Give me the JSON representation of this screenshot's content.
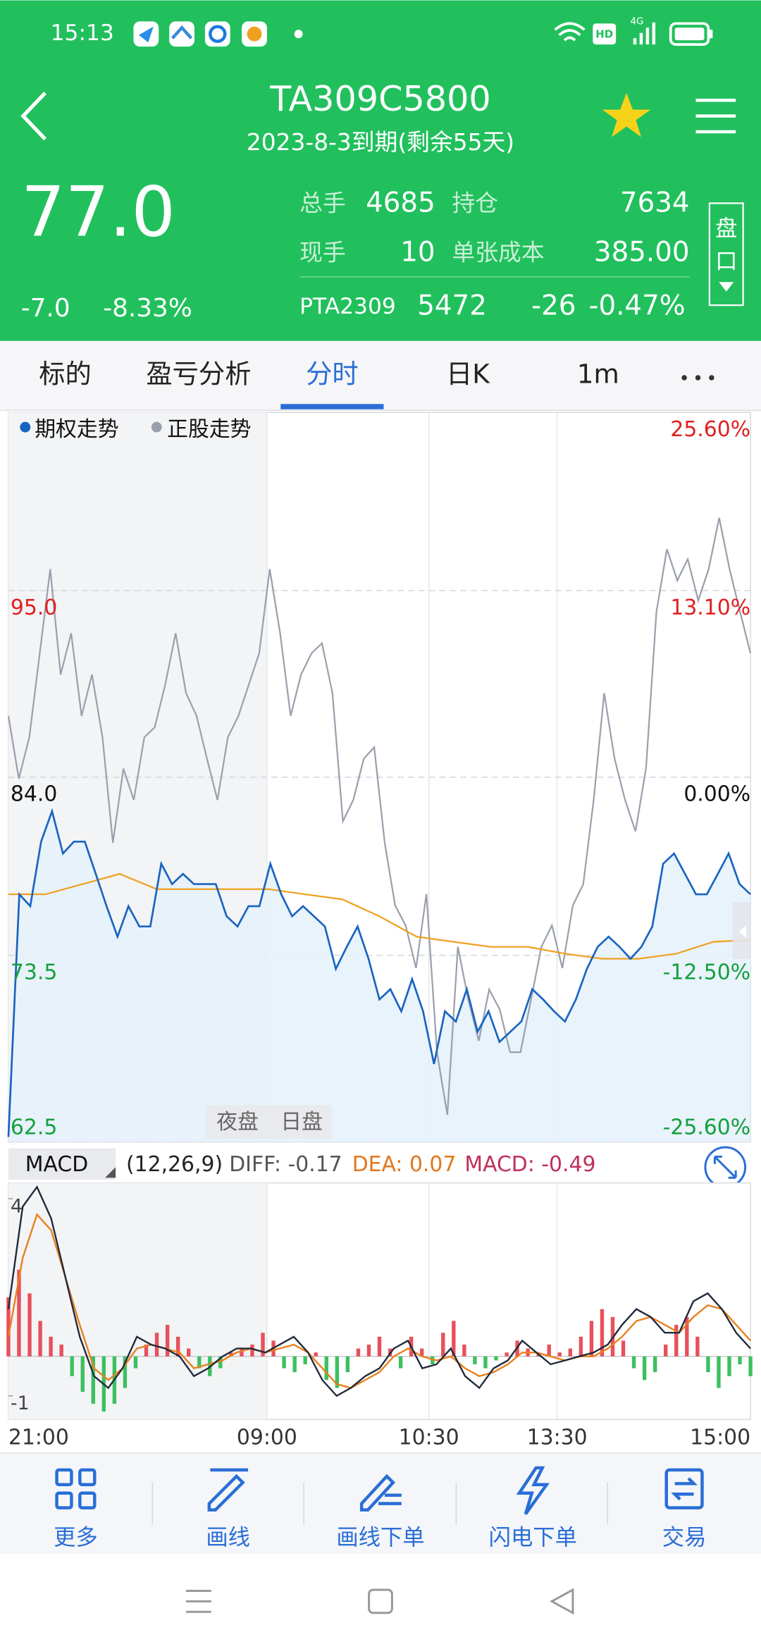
{
  "status": {
    "time": "15:13",
    "indicators": [
      "HD",
      "4G"
    ]
  },
  "header": {
    "title": "TA309C5800",
    "subtitle": "2023-8-3到期(剩余55天)"
  },
  "quote": {
    "price": "77.0",
    "change": "-7.0",
    "change_pct": "-8.33%",
    "stats": [
      {
        "label": "总手",
        "value": "4685"
      },
      {
        "label": "持仓",
        "value": "7634"
      },
      {
        "label": "现手",
        "value": "10"
      },
      {
        "label": "单张成本",
        "value": "385.00"
      }
    ],
    "underlying": {
      "name": "PTA2309",
      "price": "5472",
      "change": "-26",
      "change_pct": "-0.47%"
    },
    "side_button": [
      "盘",
      "口"
    ]
  },
  "tabs": {
    "items": [
      "标的",
      "盈亏分析",
      "分时",
      "日K",
      "1m"
    ],
    "active": 2
  },
  "chart": {
    "type": "line",
    "legend": [
      "期权走势",
      "正股走势"
    ],
    "sessions": [
      "夜盘",
      "日盘"
    ],
    "price_ylim": [
      62.5,
      105.5
    ],
    "price_ticks": [
      {
        "value": 95,
        "label": "95.0"
      },
      {
        "value": 84,
        "label": "84.0"
      },
      {
        "value": 73.5,
        "label": "73.5"
      },
      {
        "value": 62.5,
        "label": "62.5"
      }
    ],
    "pct_ylim": [
      -25.6,
      25.6
    ],
    "pct_ticks": [
      {
        "value": 25.6,
        "label": "25.60%"
      },
      {
        "value": 13.1,
        "label": "13.10%"
      },
      {
        "value": 0,
        "label": "0.00%"
      },
      {
        "value": -12.5,
        "label": "-12.50%"
      },
      {
        "value": -25.6,
        "label": "-25.60%"
      }
    ],
    "up_color": "#e02020",
    "down_color": "#15a03c",
    "flat_color": "#111111",
    "option": {
      "color": "#1a64c0",
      "fill": "#e4f1fb",
      "values": [
        62.8,
        77.1,
        76.4,
        80.2,
        82.0,
        79.5,
        80.2,
        80.2,
        78.3,
        76.4,
        74.6,
        76.4,
        75.2,
        75.2,
        78.9,
        77.7,
        78.3,
        77.7,
        77.7,
        77.7,
        75.8,
        75.2,
        76.4,
        76.4,
        78.9,
        77.1,
        75.8,
        76.4,
        75.8,
        75.2,
        72.7,
        74.0,
        75.2,
        73.3,
        70.9,
        71.5,
        70.2,
        72.1,
        70.2,
        67.1,
        70.2,
        69.6,
        71.5,
        69.0,
        70.2,
        68.4,
        69.0,
        69.6,
        71.5,
        70.9,
        70.2,
        69.6,
        70.9,
        72.7,
        74.0,
        74.6,
        74.0,
        73.3,
        74.0,
        75.2,
        78.9,
        79.5,
        78.3,
        77.1,
        77.1,
        78.3,
        79.5,
        77.7,
        77.1
      ]
    },
    "underlying": {
      "color": "#9aa0ad",
      "values": [
        4.3,
        -0.1,
        2.8,
        8.7,
        14.6,
        7.2,
        10.1,
        4.3,
        7.2,
        2.8,
        -4.6,
        0.6,
        -1.6,
        2.8,
        3.5,
        6.5,
        10.1,
        5.9,
        4.3,
        1.3,
        -1.6,
        2.8,
        4.3,
        6.5,
        8.7,
        14.6,
        10.1,
        4.3,
        7.2,
        8.7,
        9.4,
        5.9,
        -3.1,
        -1.6,
        1.3,
        2.1,
        -4.6,
        -9.0,
        -10.4,
        -13.4,
        -8.2,
        -19.3,
        -23.7,
        -11.9,
        -15.6,
        -18.5,
        -14.9,
        -16.3,
        -19.3,
        -19.3,
        -15.6,
        -11.9,
        -10.4,
        -13.4,
        -9.0,
        -7.5,
        -1.6,
        5.9,
        1.3,
        -1.6,
        -3.8,
        0.6,
        11.6,
        16.0,
        13.8,
        15.3,
        12.4,
        14.6,
        18.2,
        14.6,
        11.6,
        8.7
      ]
    },
    "average": {
      "color": "#f0a020",
      "values": [
        77.1,
        77.1,
        77.7,
        78.3,
        77.4,
        77.4,
        77.4,
        77.4,
        77.1,
        76.8,
        75.8,
        74.6,
        74.3,
        74.0,
        74.0,
        73.6,
        73.3,
        73.3,
        73.6,
        74.3,
        74.4
      ]
    }
  },
  "macd": {
    "name": "MACD",
    "params": "(12,26,9)",
    "diff_label": "DIFF: -0.17",
    "dea_label": "DEA: 0.07",
    "macd_label": "MACD: -0.49",
    "ylim": [
      -1.6,
      4.4
    ],
    "yticks": [
      4,
      -1
    ],
    "up_color": "#e8505a",
    "down_color": "#3cc060",
    "bars": [
      1.5,
      2.2,
      1.6,
      0.9,
      0.5,
      0.3,
      -0.5,
      -0.9,
      -1.2,
      -1.4,
      -1.2,
      -0.8,
      -0.3,
      0.3,
      0.6,
      0.8,
      0.5,
      0.2,
      -0.3,
      -0.5,
      -0.3,
      0.1,
      0.2,
      0.3,
      0.6,
      0.4,
      -0.3,
      -0.4,
      -0.2,
      0.1,
      -0.6,
      -0.8,
      -0.4,
      0.2,
      0.3,
      0.5,
      0.2,
      -0.3,
      0.5,
      0.2,
      -0.2,
      0.6,
      0.9,
      0.3,
      -0.2,
      -0.3,
      -0.1,
      0.1,
      0.4,
      0.2,
      0.1,
      0.3,
      0.1,
      0.2,
      0.5,
      0.9,
      1.2,
      1.0,
      0.4,
      -0.3,
      -0.6,
      -0.4,
      0.3,
      0.8,
      1.0,
      0.5,
      -0.4,
      -0.8,
      -0.5,
      -0.2,
      -0.5
    ],
    "diff": {
      "color": "#222a3a",
      "values": [
        1.2,
        3.8,
        4.3,
        3.5,
        2.0,
        0.5,
        -0.5,
        -0.8,
        -0.3,
        0.5,
        0.3,
        0.2,
        0.0,
        -0.5,
        -0.3,
        0.0,
        0.2,
        0.2,
        0.1,
        0.3,
        0.5,
        0.1,
        -0.6,
        -1.0,
        -0.8,
        -0.5,
        -0.3,
        0.2,
        0.4,
        -0.3,
        -0.2,
        0.2,
        -0.5,
        -0.8,
        -0.3,
        -0.1,
        0.4,
        0.1,
        -0.2,
        -0.1,
        0.0,
        0.1,
        0.3,
        0.8,
        1.2,
        1.0,
        0.6,
        0.6,
        1.4,
        1.6,
        1.2,
        0.6,
        0.2
      ]
    },
    "dea": {
      "color": "#e8801c",
      "values": [
        0.5,
        2.5,
        3.6,
        3.2,
        2.0,
        0.8,
        -0.3,
        -0.6,
        -0.3,
        0.2,
        0.3,
        0.2,
        0.1,
        -0.3,
        -0.2,
        -0.1,
        0.1,
        0.2,
        0.1,
        0.2,
        0.3,
        0.1,
        -0.3,
        -0.7,
        -0.8,
        -0.6,
        -0.4,
        0.0,
        0.2,
        0.0,
        -0.1,
        0.0,
        -0.3,
        -0.5,
        -0.4,
        -0.2,
        0.1,
        0.1,
        0.0,
        -0.1,
        0.0,
        0.0,
        0.2,
        0.5,
        0.9,
        1.0,
        0.8,
        0.6,
        1.0,
        1.3,
        1.2,
        0.8,
        0.4
      ]
    }
  },
  "time_labels": [
    "21:00",
    "09:00",
    "10:30",
    "13:30",
    "15:00"
  ],
  "bottom_nav": [
    "更多",
    "画线",
    "画线下单",
    "闪电下单",
    "交易"
  ]
}
